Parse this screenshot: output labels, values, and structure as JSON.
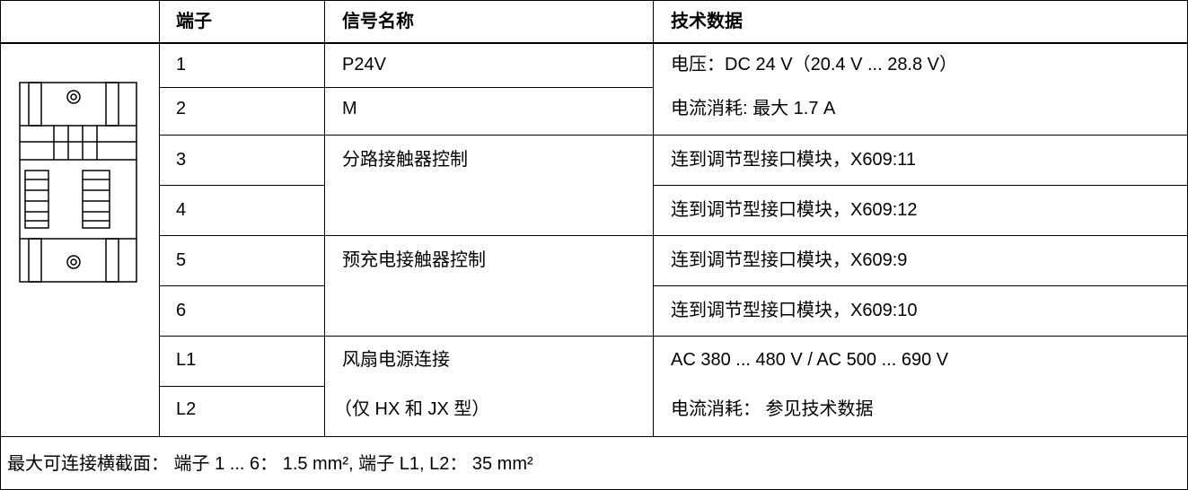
{
  "table": {
    "header": [
      "端子",
      "信号名称",
      "技术数据"
    ],
    "terminals": [
      "1",
      "2",
      "3",
      "4",
      "5",
      "6",
      "L1",
      "L2"
    ],
    "signals": [
      "P24V",
      "M",
      "分路接触器控制",
      "预充电接触器控制",
      "风扇电源连接",
      "（仅 HX 和 JX 型）"
    ],
    "technical_data": [
      "电压：DC 24 V（20.4 V ... 28.8 V）",
      "电流消耗: 最大 1.7 A",
      "连到调节型接口模块，X609:11",
      "连到调节型接口模块，X609:12",
      "连到调节型接口模块，X609:9",
      "连到调节型接口模块，X609:10",
      "AC 380 ... 480 V / AC 500 ... 690 V",
      "电流消耗： 参见技术数据"
    ],
    "footer": "最大可连接横截面： 端子 1 ... 6： 1.5 mm², 端子 L1, L2： 35 mm²"
  }
}
